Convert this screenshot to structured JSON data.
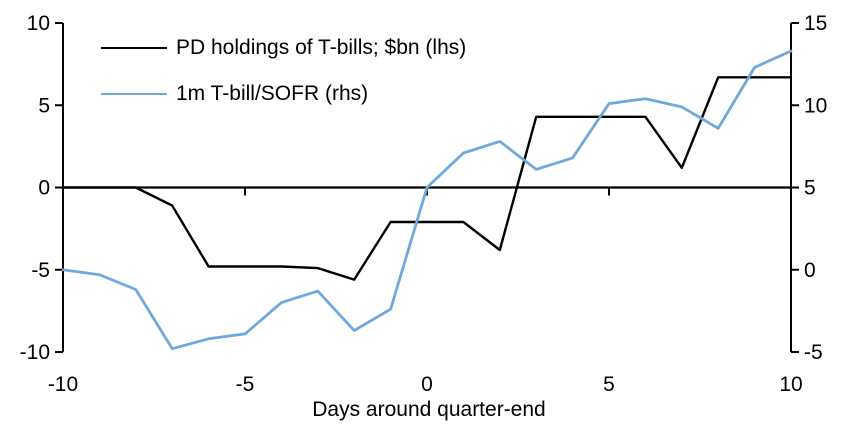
{
  "chart_data": {
    "type": "line",
    "title": "",
    "xlabel": "Days around quarter-end",
    "grid": false,
    "legend_position": "top-left-inside",
    "x": [
      -10,
      -9,
      -8,
      -7,
      -6,
      -5,
      -4,
      -3,
      -2,
      -1,
      0,
      1,
      2,
      3,
      4,
      5,
      6,
      7,
      8,
      9,
      10
    ],
    "series": [
      {
        "name": "PD holdings of T-bills; $bn (lhs)",
        "axis": "left",
        "color": "#000000",
        "values": [
          0.0,
          0.0,
          0.0,
          -1.1,
          -4.8,
          -4.8,
          -4.8,
          -4.9,
          -5.6,
          -2.1,
          -2.1,
          -2.1,
          -3.8,
          4.3,
          4.3,
          4.3,
          4.3,
          1.2,
          6.7,
          6.7,
          6.7
        ]
      },
      {
        "name": "1m T-bill/SOFR (rhs)",
        "axis": "right",
        "color": "#6FA8DC",
        "values": [
          0.0,
          -0.3,
          -1.2,
          -4.8,
          -4.2,
          -3.9,
          -2.0,
          -1.3,
          -3.7,
          -2.4,
          5.0,
          7.1,
          7.8,
          6.1,
          6.8,
          10.1,
          10.4,
          9.9,
          8.6,
          12.3,
          13.3
        ]
      }
    ],
    "left_axis": {
      "min": -10,
      "max": 10,
      "ticks": [
        10,
        5,
        0,
        -5,
        -10
      ]
    },
    "right_axis": {
      "min": -5,
      "max": 15,
      "ticks": [
        15,
        10,
        5,
        0,
        -5
      ]
    },
    "x_axis": {
      "min": -10,
      "max": 10,
      "tick_labels": [
        -10,
        -5,
        0,
        5,
        10
      ],
      "zero_line_ticks": [
        -5,
        0,
        5
      ]
    }
  }
}
